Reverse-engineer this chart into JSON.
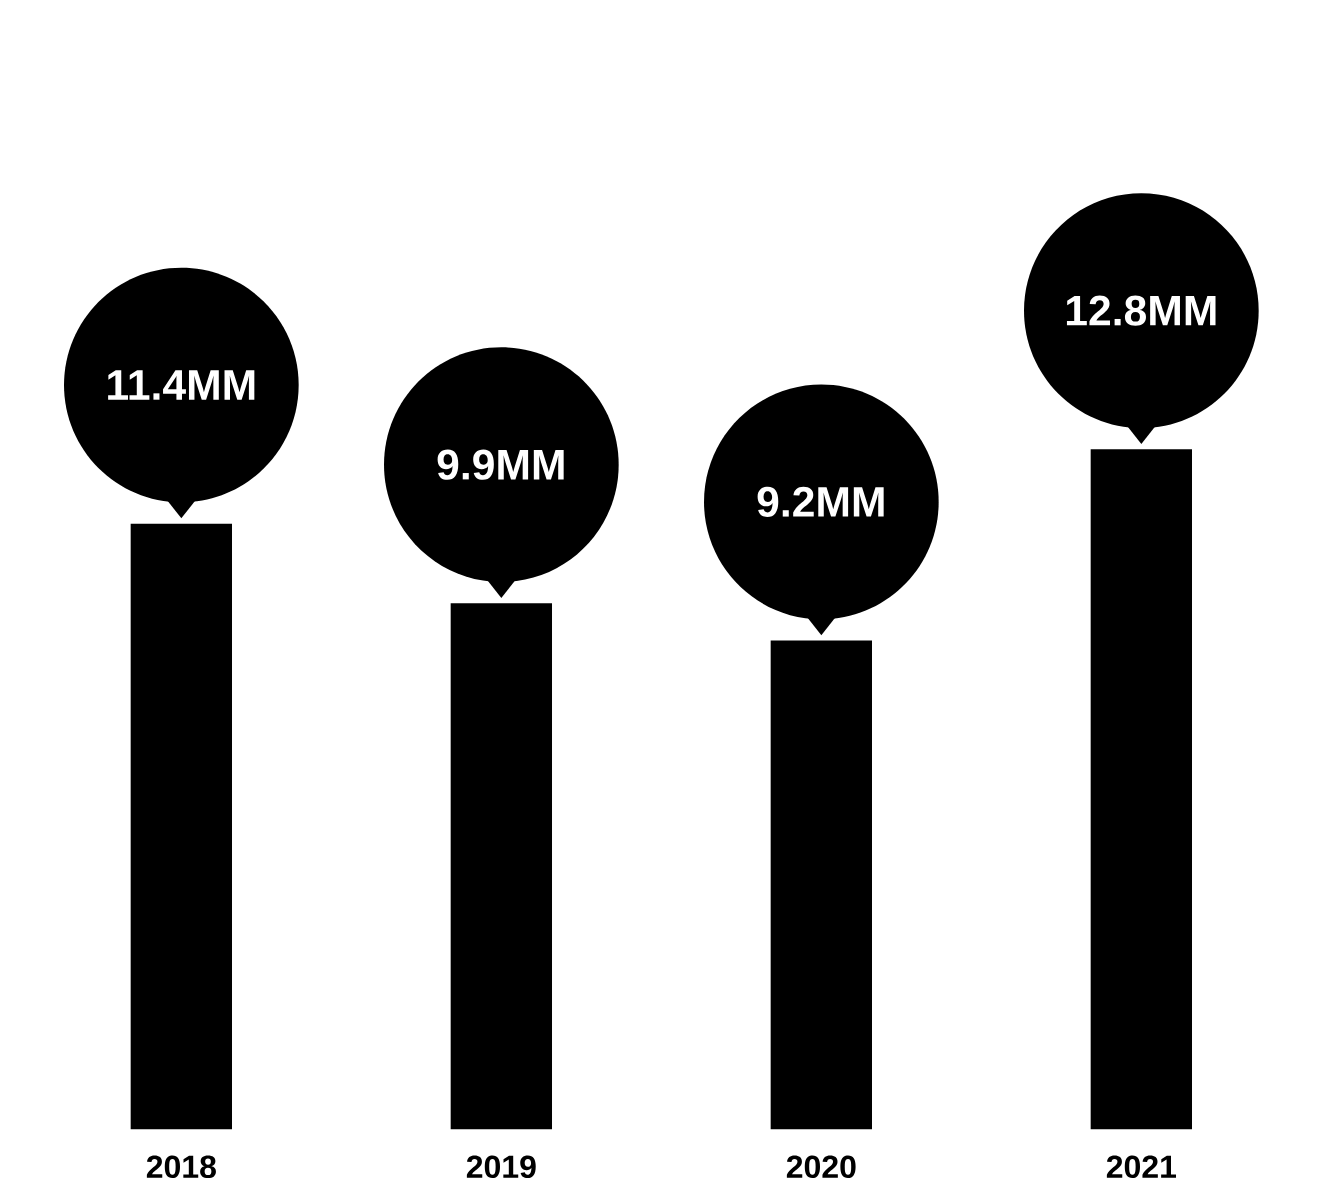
{
  "chart_data": {
    "type": "bar",
    "categories": [
      "2018",
      "2019",
      "2020",
      "2021"
    ],
    "values": [
      11.4,
      9.9,
      9.2,
      12.8
    ],
    "value_labels": [
      "11.4MM",
      "9.9MM",
      "9.2MM",
      "12.8MM"
    ],
    "color": "#000000"
  }
}
